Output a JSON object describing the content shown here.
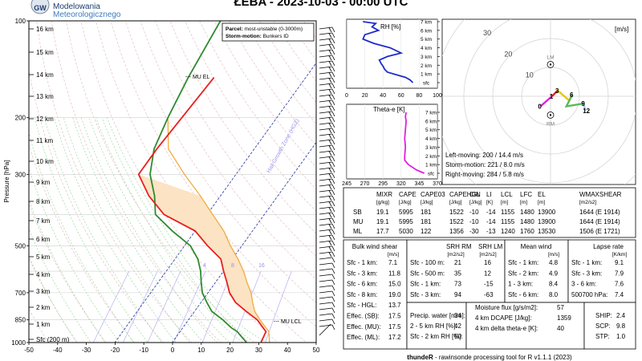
{
  "header": {
    "logo_lines": [
      "Modelowania",
      "Meteorologicznego"
    ],
    "logo_badge": "GW",
    "title": "ŁEBA - 2023-10-03 - 00:00 UTC"
  },
  "footer": {
    "credit_bold": "thundeR",
    "credit_rest": " - rawinsonde processing tool for R v1.1.1 (2023)"
  },
  "colors": {
    "temperature": "#e8201e",
    "dewpoint": "#2e8b2e",
    "parcel": "#f2a531",
    "cape_fill": "#fbe3c3",
    "dry_adiabat": "#e0b8b8",
    "moist_adiabat": "#8cd28c",
    "mixing_ratio": "#b8aef0",
    "isotherm_zero": "#1f2f9e",
    "rh_line": "#1f2ccc",
    "theta_line": "#e020e0"
  },
  "skewt": {
    "ylabel": "Pressure [hPa]",
    "x_ticks": [
      "-50",
      "-40",
      "-30",
      "-20",
      "-10",
      "0",
      "10",
      "20",
      "30",
      "40",
      "50"
    ],
    "p_ticks": [
      "100",
      "200",
      "300",
      "500",
      "700",
      "850",
      "1000"
    ],
    "height_labels": [
      "16 km",
      "15 km",
      "14 km",
      "13 km",
      "12 km",
      "11 km",
      "10 km",
      "9 km",
      "8 km",
      "7 km",
      "6 km",
      "5 km",
      "4 km",
      "3 km",
      "2 km",
      "1 km",
      "Sfc (200 m)"
    ],
    "legend": {
      "line1_label": "Parcel:",
      "line1_value": "most-unstable (0-3000m)",
      "line2_label": "Storm-motion:",
      "line2_value": "Bunkers ID"
    },
    "mixing_ratio_labels": [
      "4",
      "8",
      "16"
    ],
    "annotations": {
      "el": "MU EL",
      "lcl": "MU LCL",
      "hail": "Hail Growth Zone (HGZ)"
    }
  },
  "chart_data": [
    {
      "type": "line",
      "title": "",
      "xlabel": "",
      "ylabel": "Pressure [hPa]",
      "xlim": [
        -50,
        50
      ],
      "ylim": [
        1000,
        100
      ],
      "y_scale": "log",
      "grid": true,
      "series": [
        {
          "name": "",
          "x": [
            31,
            30,
            24,
            18,
            12,
            7.5,
            4,
            0,
            -4,
            -12,
            -20,
            -35,
            -45,
            -54,
            -54,
            -52
          ],
          "y": [
            1000,
            925,
            850,
            800,
            750,
            700,
            650,
            600,
            550,
            500,
            450,
            400,
            350,
            300,
            250,
            150
          ]
        },
        {
          "name": "",
          "x": [
            26,
            22,
            20,
            17,
            12,
            6,
            2,
            -2,
            -5,
            -8,
            -12,
            -18,
            -28,
            -38,
            -43,
            -50,
            -55,
            -58,
            -61,
            -64
          ],
          "y": [
            1000,
            950,
            925,
            900,
            850,
            800,
            750,
            700,
            650,
            600,
            550,
            500,
            450,
            400,
            350,
            300,
            250,
            200,
            150,
            100
          ]
        },
        {
          "name": "",
          "x": [
            34,
            31,
            25,
            21,
            18,
            15,
            11,
            7,
            2,
            -4,
            -10,
            -18,
            -27,
            -38,
            -50,
            -58
          ],
          "y": [
            1000,
            925,
            850,
            800,
            750,
            700,
            650,
            600,
            550,
            500,
            450,
            400,
            350,
            300,
            250,
            200
          ]
        }
      ]
    },
    {
      "type": "line",
      "title": "RH [%]",
      "xlabel": "",
      "ylabel": "",
      "xlim": [
        0,
        100
      ],
      "x_ticks": [
        "0",
        "20",
        "40",
        "60",
        "80",
        "100"
      ],
      "y_labels": [
        "7 km",
        "6 km",
        "5 km",
        "4 km",
        "3 km",
        "2 km",
        "1 km",
        "sfc"
      ],
      "series": [
        {
          "name": "",
          "x": [
            73,
            70,
            65,
            55,
            45,
            42,
            40,
            38,
            36,
            45,
            60,
            48,
            30,
            18,
            20,
            35,
            28,
            32,
            18
          ],
          "y": [
            0,
            0.3,
            0.6,
            0.9,
            1.2,
            1.5,
            1.9,
            2.2,
            2.6,
            3.0,
            3.4,
            4.0,
            4.5,
            5.0,
            5.5,
            6.0,
            6.4,
            6.8,
            7.0
          ]
        }
      ]
    },
    {
      "type": "line",
      "title": "Theta-e [K]",
      "xlabel": "",
      "ylabel": "",
      "xlim": [
        245,
        370
      ],
      "x_ticks": [
        "245",
        "270",
        "295",
        "320",
        "345",
        "370"
      ],
      "y_labels": [
        "7 km",
        "6 km",
        "5 km",
        "4 km",
        "3 km",
        "2 km",
        "1 km",
        "sfc"
      ],
      "series": [
        {
          "name": "",
          "x": [
            352,
            341,
            330,
            325,
            325,
            326,
            325,
            326,
            327,
            326,
            327
          ],
          "y": [
            0,
            0.4,
            1.0,
            1.5,
            2.0,
            3.0,
            4.0,
            5.0,
            6.0,
            6.5,
            7.0
          ]
        }
      ]
    },
    {
      "type": "scatter",
      "title": "Hodograph",
      "unit": "[m/s]",
      "ring_labels": [
        "10",
        "20",
        "30"
      ],
      "hodo_labels": [
        "0",
        "1",
        "3",
        "6",
        "9",
        "12"
      ],
      "lm_label": "LM",
      "rm_label": "RM",
      "u": [
        -3.5,
        0.5,
        1.5,
        2.5,
        6.5,
        7.5,
        5.5,
        11.5,
        12.0
      ],
      "v": [
        -3.5,
        0.0,
        1.0,
        2.0,
        -1.5,
        0.5,
        -3.5,
        -2.5,
        -5.0
      ],
      "lm": [
        0,
        11
      ],
      "rm": [
        0,
        -6.5
      ],
      "storm_info": [
        {
          "label": "Left-moving: ",
          "value": "200 / 14.4 m/s"
        },
        {
          "label": "Storm-motion: ",
          "value": "221 / 8.0 m/s"
        },
        {
          "label": "Right-moving: ",
          "value": "284 / 5.8 m/s"
        }
      ]
    }
  ],
  "parcel_table": {
    "columns": [
      {
        "name": "MIXR",
        "unit": "[g/kg]"
      },
      {
        "name": "CAPE",
        "unit": "[J/kg]"
      },
      {
        "name": "CAPE03",
        "unit": "[J/kg]"
      },
      {
        "name": "CAPEHGL",
        "unit": "[J/kg]"
      },
      {
        "name": "CIN",
        "unit": "[J/kg]"
      },
      {
        "name": "LI",
        "unit": "[K]"
      },
      {
        "name": "LCL",
        "unit": "[m]"
      },
      {
        "name": "LFC",
        "unit": "[m]"
      },
      {
        "name": "EL",
        "unit": "[m]"
      },
      {
        "name": "WMAXSHEAR",
        "unit": "[m2/s2]"
      }
    ],
    "rows": [
      [
        "SB",
        "19.1",
        "5995",
        "181",
        "1522",
        "-10",
        "-14",
        "1155",
        "1480",
        "13900",
        "1644 (E 1914)"
      ],
      [
        "MU",
        "19.1",
        "5995",
        "181",
        "1522",
        "-10",
        "-14",
        "1155",
        "1480",
        "13900",
        "1644 (E 1914)"
      ],
      [
        "ML",
        "17.7",
        "5030",
        "122",
        "1356",
        "-30",
        "-13",
        "1240",
        "1760",
        "13530",
        "1506 (E 1721)"
      ]
    ]
  },
  "shear_table": {
    "title": "Bulk wind shear",
    "unit": "[m/s]",
    "rows": [
      {
        "label": "Sfc - 1 km:",
        "value": "7.1"
      },
      {
        "label": "Sfc - 3 km:",
        "value": "11.8"
      },
      {
        "label": "Sfc - 6 km:",
        "value": "15.0"
      },
      {
        "label": "Sfc - 8 km:",
        "value": "19.0"
      },
      {
        "label": "Sfc - HGL:",
        "value": "13.7"
      },
      {
        "label": "Effec. (SB):",
        "value": "17.5"
      },
      {
        "label": "Effec. (MU):",
        "value": "17.5"
      },
      {
        "label": "Effec. (ML):",
        "value": "17.2"
      }
    ]
  },
  "srh_table": {
    "col1": "SRH RM",
    "col2": "SRH LM",
    "unit": "[m2/s2]",
    "rows": [
      {
        "label": "Sfc - 100 m:",
        "rm": "21",
        "lm": "16"
      },
      {
        "label": "Sfc - 500 m:",
        "rm": "35",
        "lm": "12"
      },
      {
        "label": "Sfc - 1 km:",
        "rm": "73",
        "lm": "-15"
      },
      {
        "label": "Sfc - 3 km:",
        "rm": "94",
        "lm": "-63"
      }
    ]
  },
  "meanwind_table": {
    "title": "Mean wind",
    "unit": "[m/s]",
    "rows": [
      {
        "label": "Sfc - 1 km:",
        "value": "4.8"
      },
      {
        "label": "Sfc - 2 km:",
        "value": "4.9"
      },
      {
        "label": "1 - 3 km:",
        "value": "8.4"
      },
      {
        "label": "Sfc - 6 km:",
        "value": "8.0"
      }
    ]
  },
  "lapse_table": {
    "title": "Lapse rate",
    "unit": "[K/km]",
    "rows": [
      {
        "label": "Sfc - 1 km:",
        "value": "9.1"
      },
      {
        "label": "Sfc - 3 km:",
        "value": "7.9"
      },
      {
        "label": "3 - 6 km:",
        "value": "7.6"
      },
      {
        "label": "500700 hPa:",
        "value": "7.4"
      }
    ]
  },
  "precip_table": {
    "rows": [
      {
        "label": "Precip. water [mm]:",
        "value": "34"
      },
      {
        "label": "2 - 5 km RH [%]:",
        "value": "42"
      },
      {
        "label": "Sfc - 2 km RH [%]:",
        "value": "50"
      }
    ]
  },
  "moisture_table": {
    "rows": [
      {
        "label": "Moisture flux [g/s/m2]:",
        "value": "57"
      },
      {
        "label": "4 km DCAPE [J/kg]:",
        "value": "1359"
      },
      {
        "label": "4 km delta theta-e [K]:",
        "value": "40"
      }
    ]
  },
  "composite_table": {
    "rows": [
      {
        "label": "SHIP:",
        "value": "2.4"
      },
      {
        "label": "SCP:",
        "value": "9.8"
      },
      {
        "label": "STP:",
        "value": "1.0"
      }
    ]
  }
}
